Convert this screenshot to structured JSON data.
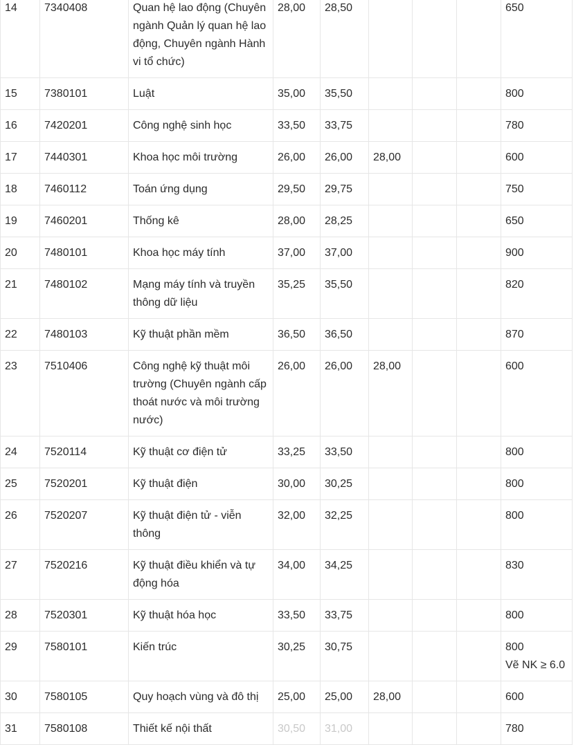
{
  "table": {
    "rows": [
      {
        "stt": "14",
        "code": "7340408",
        "name": "Quan hệ lao động (Chuyên ngành Quản lý quan hệ lao động, Chuyên ngành Hành vi tổ chức)",
        "c1": "28,00",
        "c2": "28,50",
        "c3": "",
        "c4": "",
        "c5": "",
        "c6": "650",
        "note": ""
      },
      {
        "stt": "15",
        "code": "7380101",
        "name": "Luật",
        "c1": "35,00",
        "c2": "35,50",
        "c3": "",
        "c4": "",
        "c5": "",
        "c6": "800",
        "note": ""
      },
      {
        "stt": "16",
        "code": "7420201",
        "name": "Công nghệ sinh học",
        "c1": "33,50",
        "c2": "33,75",
        "c3": "",
        "c4": "",
        "c5": "",
        "c6": "780",
        "note": ""
      },
      {
        "stt": "17",
        "code": "7440301",
        "name": "Khoa học môi trường",
        "c1": "26,00",
        "c2": "26,00",
        "c3": "28,00",
        "c4": "",
        "c5": "",
        "c6": "600",
        "note": ""
      },
      {
        "stt": "18",
        "code": "7460112",
        "name": "Toán ứng dụng",
        "c1": "29,50",
        "c2": "29,75",
        "c3": "",
        "c4": "",
        "c5": "",
        "c6": "750",
        "note": ""
      },
      {
        "stt": "19",
        "code": "7460201",
        "name": "Thống kê",
        "c1": "28,00",
        "c2": "28,25",
        "c3": "",
        "c4": "",
        "c5": "",
        "c6": "650",
        "note": ""
      },
      {
        "stt": "20",
        "code": "7480101",
        "name": "Khoa học máy tính",
        "c1": "37,00",
        "c2": "37,00",
        "c3": "",
        "c4": "",
        "c5": "",
        "c6": "900",
        "note": ""
      },
      {
        "stt": "21",
        "code": "7480102",
        "name": "Mạng máy tính và truyền thông dữ liệu",
        "c1": "35,25",
        "c2": "35,50",
        "c3": "",
        "c4": "",
        "c5": "",
        "c6": "820",
        "note": ""
      },
      {
        "stt": "22",
        "code": "7480103",
        "name": "Kỹ thuật phần mềm",
        "c1": "36,50",
        "c2": "36,50",
        "c3": "",
        "c4": "",
        "c5": "",
        "c6": "870",
        "note": ""
      },
      {
        "stt": "23",
        "code": "7510406",
        "name": "Công nghệ kỹ thuật môi trường (Chuyên ngành cấp thoát nước và môi trường nước)",
        "c1": "26,00",
        "c2": "26,00",
        "c3": "28,00",
        "c4": "",
        "c5": "",
        "c6": "600",
        "note": ""
      },
      {
        "stt": "24",
        "code": "7520114",
        "name": "Kỹ thuật cơ điện tử",
        "c1": "33,25",
        "c2": "33,50",
        "c3": "",
        "c4": "",
        "c5": "",
        "c6": "800",
        "note": ""
      },
      {
        "stt": "25",
        "code": "7520201",
        "name": "Kỹ thuật điện",
        "c1": "30,00",
        "c2": "30,25",
        "c3": "",
        "c4": "",
        "c5": "",
        "c6": "800",
        "note": ""
      },
      {
        "stt": "26",
        "code": "7520207",
        "name": "Kỹ thuật điện tử - viễn thông",
        "c1": "32,00",
        "c2": "32,25",
        "c3": "",
        "c4": "",
        "c5": "",
        "c6": "800",
        "note": ""
      },
      {
        "stt": "27",
        "code": "7520216",
        "name": "Kỹ thuật điều khiển và tự động hóa",
        "c1": "34,00",
        "c2": "34,25",
        "c3": "",
        "c4": "",
        "c5": "",
        "c6": "830",
        "note": ""
      },
      {
        "stt": "28",
        "code": "7520301",
        "name": "Kỹ thuật hóa học",
        "c1": "33,50",
        "c2": "33,75",
        "c3": "",
        "c4": "",
        "c5": "",
        "c6": "800",
        "note": ""
      },
      {
        "stt": "29",
        "code": "7580101",
        "name": "Kiến trúc",
        "c1": "30,25",
        "c2": "30,75",
        "c3": "",
        "c4": "",
        "c5": "",
        "c6": "800",
        "note": "Vẽ NK ≥ 6.0"
      },
      {
        "stt": "30",
        "code": "7580105",
        "name": "Quy hoạch vùng và đô thị",
        "c1": "25,00",
        "c2": "25,00",
        "c3": "28,00",
        "c4": "",
        "c5": "",
        "c6": "600",
        "note": ""
      },
      {
        "stt": "31",
        "code": "7580108",
        "name": "Thiết kế nội thất",
        "c1": "30,50",
        "c2": "31,00",
        "c3": "",
        "c4": "",
        "c5": "",
        "c6": "780",
        "note": "",
        "faded": true
      }
    ]
  }
}
